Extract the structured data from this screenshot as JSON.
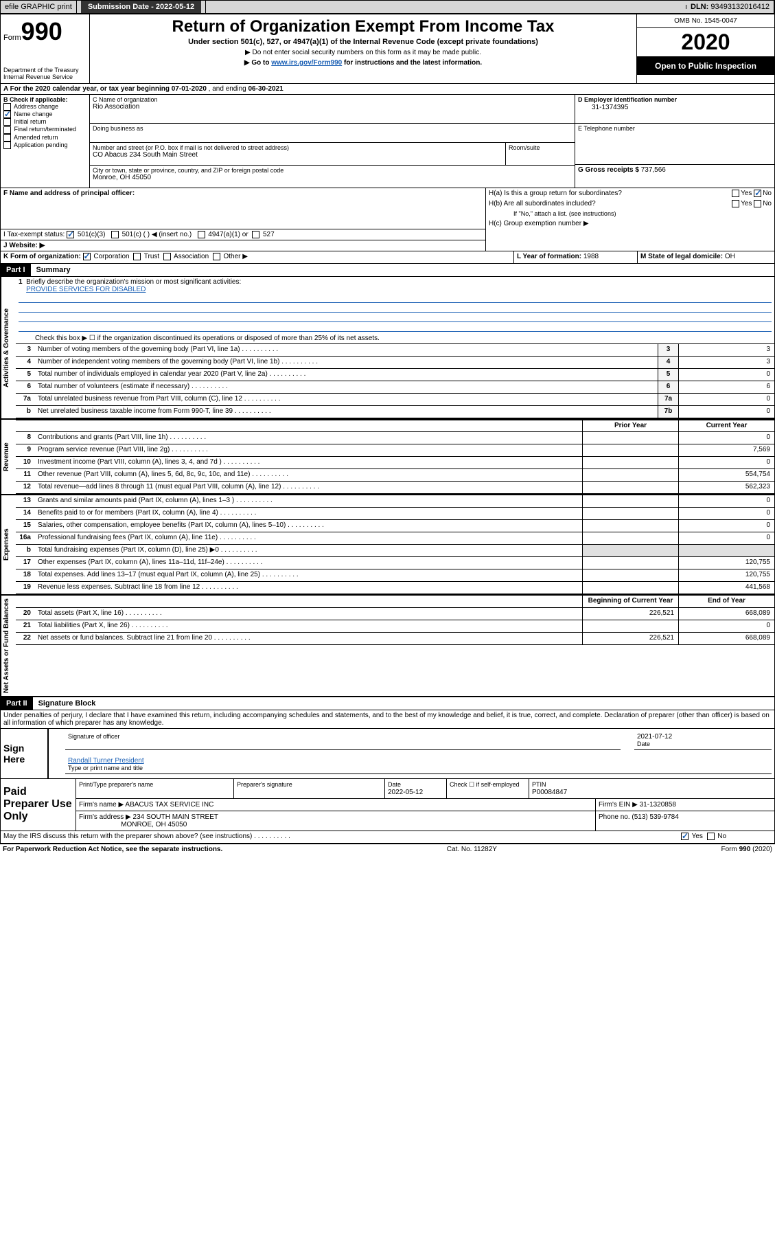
{
  "header_bar": {
    "efile": "efile GRAPHIC print",
    "submission_label": "Submission Date",
    "submission_date": "2022-05-12",
    "dln_label": "DLN:",
    "dln": "93493132016412"
  },
  "title_block": {
    "form_label": "Form",
    "form_number": "990",
    "title": "Return of Organization Exempt From Income Tax",
    "subtitle": "Under section 501(c), 527, or 4947(a)(1) of the Internal Revenue Code (except private foundations)",
    "note1": "▶ Do not enter social security numbers on this form as it may be made public.",
    "note2_pre": "▶ Go to ",
    "note2_link": "www.irs.gov/Form990",
    "note2_post": " for instructions and the latest information.",
    "omb": "OMB No. 1545-0047",
    "year": "2020",
    "open_public": "Open to Public Inspection",
    "dept": "Department of the Treasury",
    "irs": "Internal Revenue Service"
  },
  "section_a": {
    "text_pre": "A For the 2020 calendar year, or tax year beginning ",
    "begin": "07-01-2020",
    "mid": " , and ending ",
    "end": "06-30-2021"
  },
  "section_b": {
    "label": "B Check if applicable:",
    "items": [
      "Address change",
      "Name change",
      "Initial return",
      "Final return/terminated",
      "Amended return",
      "Application pending"
    ],
    "checked_index": 1
  },
  "section_c": {
    "name_label": "C Name of organization",
    "name": "Rio Association",
    "dba_label": "Doing business as",
    "dba": "",
    "street_label": "Number and street (or P.O. box if mail is not delivered to street address)",
    "street": "CO Abacus 234 South Main Street",
    "room_label": "Room/suite",
    "city_label": "City or town, state or province, country, and ZIP or foreign postal code",
    "city": "Monroe, OH  45050"
  },
  "section_d": {
    "label": "D Employer identification number",
    "value": "31-1374395"
  },
  "section_e": {
    "label": "E Telephone number",
    "value": ""
  },
  "section_g": {
    "label": "G Gross receipts $",
    "value": "737,566"
  },
  "section_f": {
    "label": "F  Name and address of principal officer:",
    "value": ""
  },
  "section_h": {
    "ha": "H(a)  Is this a group return for subordinates?",
    "hb": "H(b)  Are all subordinates included?",
    "hb_note": "If \"No,\" attach a list. (see instructions)",
    "hc": "H(c)  Group exemption number ▶",
    "yes": "Yes",
    "no": "No"
  },
  "section_i": {
    "label": "I   Tax-exempt status:",
    "opts": [
      "501(c)(3)",
      "501(c) (  ) ◀ (insert no.)",
      "4947(a)(1) or",
      "527"
    ]
  },
  "section_j": {
    "label": "J   Website: ▶"
  },
  "section_k": {
    "label": "K Form of organization:",
    "opts": [
      "Corporation",
      "Trust",
      "Association",
      "Other ▶"
    ]
  },
  "section_l": {
    "label": "L Year of formation:",
    "value": "1988"
  },
  "section_m": {
    "label": "M State of legal domicile:",
    "value": "OH"
  },
  "part1": {
    "header": "Part I",
    "title": "Summary",
    "line1_label": "Briefly describe the organization's mission or most significant activities:",
    "line1_value": "PROVIDE SERVICES FOR DISABLED",
    "line2": "Check this box ▶ ☐  if the organization discontinued its operations or disposed of more than 25% of its net assets.",
    "activities_label": "Activities & Governance",
    "revenue_label": "Revenue",
    "expenses_label": "Expenses",
    "netassets_label": "Net Assets or Fund Balances",
    "prior_year": "Prior Year",
    "current_year": "Current Year",
    "begin_year": "Beginning of Current Year",
    "end_year": "End of Year",
    "lines_ag": [
      {
        "n": "3",
        "t": "Number of voting members of the governing body (Part VI, line 1a)",
        "box": "3",
        "v": "3"
      },
      {
        "n": "4",
        "t": "Number of independent voting members of the governing body (Part VI, line 1b)",
        "box": "4",
        "v": "3"
      },
      {
        "n": "5",
        "t": "Total number of individuals employed in calendar year 2020 (Part V, line 2a)",
        "box": "5",
        "v": "0"
      },
      {
        "n": "6",
        "t": "Total number of volunteers (estimate if necessary)",
        "box": "6",
        "v": "6"
      },
      {
        "n": "7a",
        "t": "Total unrelated business revenue from Part VIII, column (C), line 12",
        "box": "7a",
        "v": "0"
      },
      {
        "n": "b",
        "t": "Net unrelated business taxable income from Form 990-T, line 39",
        "box": "7b",
        "v": "0"
      }
    ],
    "lines_rev": [
      {
        "n": "8",
        "t": "Contributions and grants (Part VIII, line 1h)",
        "p": "",
        "c": "0"
      },
      {
        "n": "9",
        "t": "Program service revenue (Part VIII, line 2g)",
        "p": "",
        "c": "7,569"
      },
      {
        "n": "10",
        "t": "Investment income (Part VIII, column (A), lines 3, 4, and 7d )",
        "p": "",
        "c": "0"
      },
      {
        "n": "11",
        "t": "Other revenue (Part VIII, column (A), lines 5, 6d, 8c, 9c, 10c, and 11e)",
        "p": "",
        "c": "554,754"
      },
      {
        "n": "12",
        "t": "Total revenue—add lines 8 through 11 (must equal Part VIII, column (A), line 12)",
        "p": "",
        "c": "562,323"
      }
    ],
    "lines_exp": [
      {
        "n": "13",
        "t": "Grants and similar amounts paid (Part IX, column (A), lines 1–3 )",
        "p": "",
        "c": "0"
      },
      {
        "n": "14",
        "t": "Benefits paid to or for members (Part IX, column (A), line 4)",
        "p": "",
        "c": "0"
      },
      {
        "n": "15",
        "t": "Salaries, other compensation, employee benefits (Part IX, column (A), lines 5–10)",
        "p": "",
        "c": "0"
      },
      {
        "n": "16a",
        "t": "Professional fundraising fees (Part IX, column (A), line 11e)",
        "p": "",
        "c": "0"
      },
      {
        "n": "b",
        "t": "Total fundraising expenses (Part IX, column (D), line 25) ▶0",
        "p": "gray",
        "c": "gray"
      },
      {
        "n": "17",
        "t": "Other expenses (Part IX, column (A), lines 11a–11d, 11f–24e)",
        "p": "",
        "c": "120,755"
      },
      {
        "n": "18",
        "t": "Total expenses. Add lines 13–17 (must equal Part IX, column (A), line 25)",
        "p": "",
        "c": "120,755"
      },
      {
        "n": "19",
        "t": "Revenue less expenses. Subtract line 18 from line 12",
        "p": "",
        "c": "441,568"
      }
    ],
    "lines_na": [
      {
        "n": "20",
        "t": "Total assets (Part X, line 16)",
        "p": "226,521",
        "c": "668,089"
      },
      {
        "n": "21",
        "t": "Total liabilities (Part X, line 26)",
        "p": "",
        "c": "0"
      },
      {
        "n": "22",
        "t": "Net assets or fund balances. Subtract line 21 from line 20",
        "p": "226,521",
        "c": "668,089"
      }
    ]
  },
  "part2": {
    "header": "Part II",
    "title": "Signature Block",
    "perjury": "Under penalties of perjury, I declare that I have examined this return, including accompanying schedules and statements, and to the best of my knowledge and belief, it is true, correct, and complete. Declaration of preparer (other than officer) is based on all information of which preparer has any knowledge."
  },
  "sign": {
    "label": "Sign Here",
    "sig_officer": "Signature of officer",
    "date_label": "Date",
    "date": "2021-07-12",
    "name_title": "Randall Turner  President",
    "type_label": "Type or print name and title"
  },
  "prep": {
    "label": "Paid Preparer Use Only",
    "print_name_label": "Print/Type preparer's name",
    "print_name": "",
    "sig_label": "Preparer's signature",
    "prep_date_label": "Date",
    "prep_date": "2022-05-12",
    "check_label": "Check ☐ if self-employed",
    "ptin_label": "PTIN",
    "ptin": "P00084847",
    "firm_name_label": "Firm's name      ▶",
    "firm_name": "ABACUS TAX SERVICE INC",
    "firm_ein_label": "Firm's EIN ▶",
    "firm_ein": "31-1320858",
    "firm_addr_label": "Firm's address ▶",
    "firm_addr1": "234 SOUTH MAIN STREET",
    "firm_addr2": "MONROE, OH  45050",
    "phone_label": "Phone no.",
    "phone": "(513) 539-9784"
  },
  "discuss": {
    "text": "May the IRS discuss this return with the preparer shown above? (see instructions)",
    "yes": "Yes",
    "no": "No"
  },
  "footer": {
    "left": "For Paperwork Reduction Act Notice, see the separate instructions.",
    "center": "Cat. No. 11282Y",
    "right": "Form 990 (2020)"
  },
  "colors": {
    "blue_link": "#1a5fb4",
    "black": "#000000",
    "gray_bg": "#d6d6d6",
    "light_gray": "#e0e0e0"
  }
}
